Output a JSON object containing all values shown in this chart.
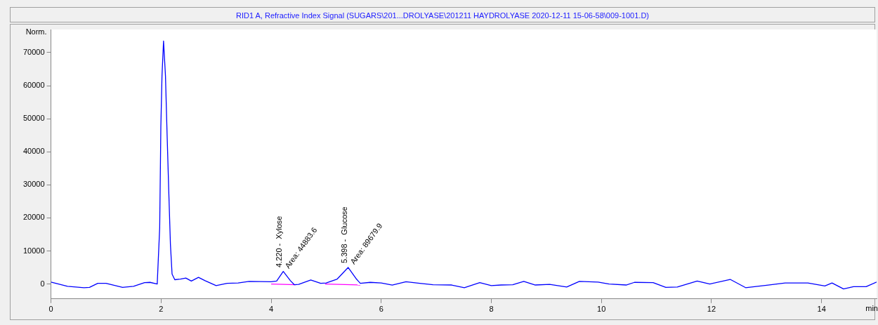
{
  "chart_data": {
    "type": "line",
    "title": "RID1 A, Refractive Index Signal (SUGARS\\201...DROLYASE\\201211 HAYDROLYASE 2020-12-11 15-06-58\\009-1001.D)",
    "xlabel": "min",
    "ylabel": "Norm.",
    "xlim": [
      0,
      15
    ],
    "xticks": [
      0,
      2,
      4,
      6,
      8,
      10,
      12,
      14
    ],
    "ylim": [
      -4500,
      77000
    ],
    "yticks": [
      0,
      10000,
      20000,
      30000,
      40000,
      50000,
      60000,
      70000
    ],
    "grid": false,
    "legend": false,
    "marker": "none",
    "line_style": "solid",
    "series": [
      {
        "color": "#0000ff",
        "x": [
          0,
          0.3,
          0.6,
          0.7,
          0.85,
          1.0,
          1.3,
          1.5,
          1.7,
          1.8,
          1.93,
          1.975,
          1.996,
          2.017,
          2.045,
          2.08,
          2.11,
          2.14,
          2.17,
          2.2,
          2.25,
          2.35,
          2.45,
          2.55,
          2.68,
          2.8,
          3.0,
          3.2,
          3.4,
          3.6,
          4.0,
          4.1,
          4.22,
          4.35,
          4.42,
          4.5,
          4.72,
          4.9,
          5.0,
          5.2,
          5.4,
          5.55,
          5.62,
          5.8,
          6.0,
          6.2,
          6.45,
          6.7,
          6.94,
          7.28,
          7.51,
          7.79,
          8.0,
          8.18,
          8.39,
          8.59,
          8.8,
          9.06,
          9.37,
          9.6,
          9.94,
          10.14,
          10.45,
          10.6,
          10.94,
          11.17,
          11.38,
          11.74,
          11.97,
          12.34,
          12.62,
          13.03,
          13.34,
          13.75,
          14.06,
          14.19,
          14.4,
          14.58,
          14.81,
          15.0
        ],
        "values": [
          600,
          -700,
          -1100,
          -1000,
          200,
          200,
          -1000,
          -700,
          400,
          500,
          0,
          17000,
          47500,
          63000,
          73500,
          63000,
          45000,
          28000,
          12000,
          3000,
          1300,
          1500,
          1800,
          900,
          2000,
          1000,
          -500,
          200,
          300,
          800,
          700,
          900,
          3800,
          1000,
          -200,
          -100,
          1200,
          200,
          300,
          1500,
          5000,
          1500,
          200,
          500,
          300,
          -300,
          700,
          200,
          -200,
          -300,
          -1100,
          400,
          -500,
          -300,
          -200,
          800,
          -300,
          -100,
          -900,
          800,
          600,
          0,
          -300,
          500,
          400,
          -1000,
          -900,
          900,
          0,
          1400,
          -1100,
          -300,
          300,
          300,
          -600,
          300,
          -1500,
          -800,
          -800,
          600
        ]
      },
      {
        "color": "#ff00ff",
        "x": [
          4.0,
          4.45
        ],
        "values": [
          0,
          -200
        ]
      },
      {
        "color": "#ff00ff",
        "x": [
          4.98,
          5.62
        ],
        "values": [
          0,
          -300
        ]
      }
    ],
    "annotations": [
      "4.220 -  Xylose",
      "Area: 44883.6",
      "5.398 -  Glucose",
      "Area: 89679.9"
    ]
  }
}
